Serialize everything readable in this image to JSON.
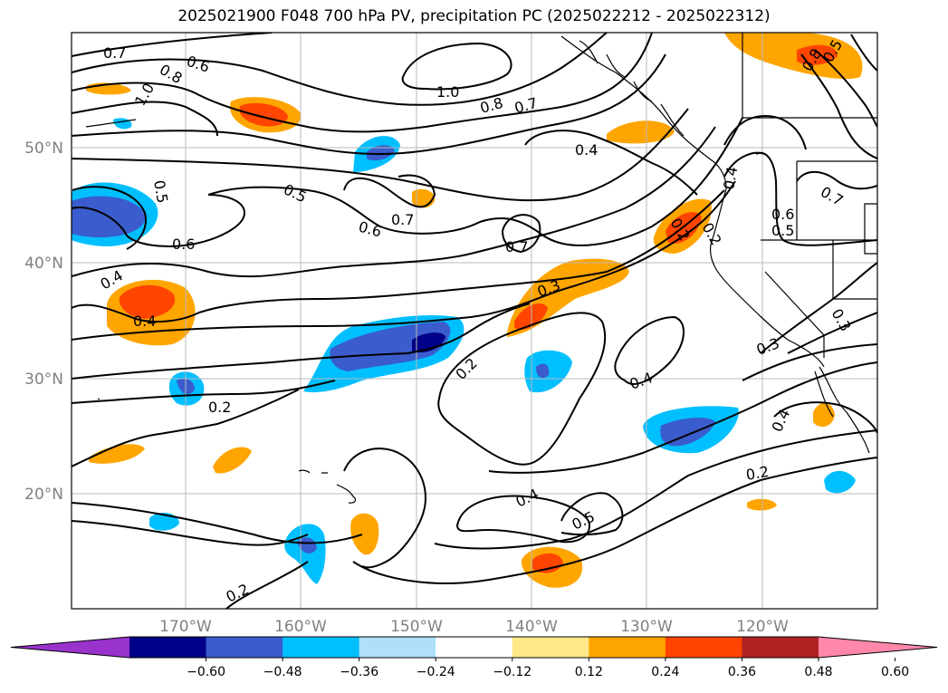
{
  "title": "2025021900 F048 700 hPa PV, precipitation PC (2025022212 - 2025022312)",
  "map": {
    "lat_labels": [
      "50°N",
      "40°N",
      "30°N",
      "20°N"
    ],
    "lon_labels": [
      "170°W",
      "160°W",
      "150°W",
      "140°W",
      "130°W",
      "120°W"
    ],
    "contour_labels": [
      "0.7",
      "0.6",
      "0.8",
      "1.0",
      "0.5",
      "0.6",
      "0.4",
      "0.4",
      "0.2",
      "0.2",
      "0.5",
      "0.6",
      "0.7",
      "1.0",
      "0.8",
      "0.7",
      "0.4",
      "0.7",
      "0.3",
      "0.2",
      "0.4",
      "0.2",
      "0.4",
      "0.5",
      "0.4",
      "0.2",
      "0.3",
      "0.4",
      "0.3",
      "0.6",
      "0.5",
      "0.7",
      "0.2",
      "0.8",
      "0.5"
    ]
  },
  "colorbar": {
    "colors": [
      "#9933cc",
      "#000088",
      "#3a5ccc",
      "#00bfff",
      "#aee0fa",
      "#ffffff",
      "#ffe88a",
      "#ffa500",
      "#ff4500",
      "#b22222",
      "#ff88aa"
    ],
    "ticks": [
      "−0.60",
      "−0.48",
      "−0.36",
      "−0.24",
      "−0.12",
      "0.12",
      "0.24",
      "0.36",
      "0.48",
      "0.60"
    ]
  }
}
